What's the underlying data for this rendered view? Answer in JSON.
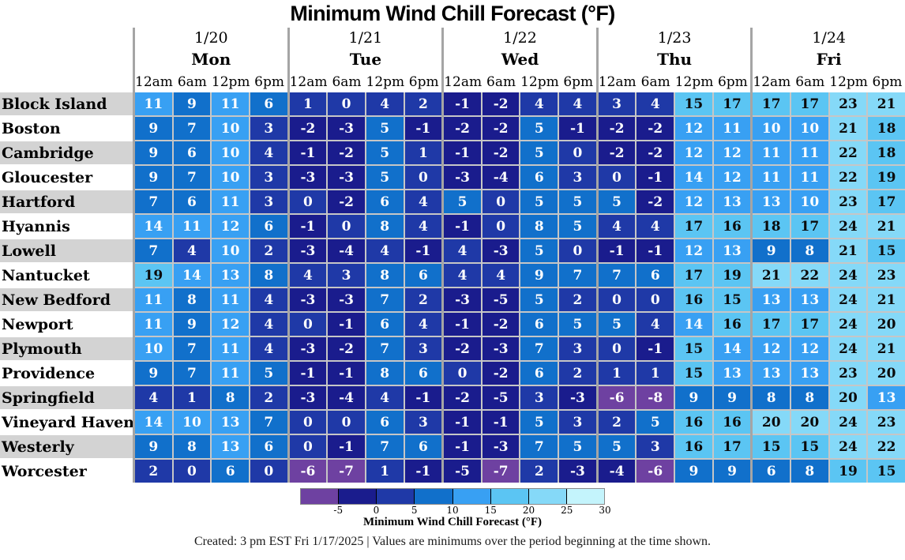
{
  "title": "Minimum Wind Chill Forecast (°F)",
  "footer": "Created: 3 pm EST Fri 1/17/2025  |  Values are minimums over the period beginning at the time shown.",
  "chart_data": {
    "type": "heatmap",
    "title": "Minimum Wind Chill Forecast (°F)",
    "day_headers": [
      {
        "date": "1/20",
        "day": "Mon"
      },
      {
        "date": "1/21",
        "day": "Tue"
      },
      {
        "date": "1/22",
        "day": "Wed"
      },
      {
        "date": "1/23",
        "day": "Thu"
      },
      {
        "date": "1/24",
        "day": "Fri"
      }
    ],
    "times_per_day": [
      "12am",
      "6am",
      "12pm",
      "6pm"
    ],
    "rows": [
      {
        "city": "Block Island",
        "values": [
          11,
          9,
          11,
          6,
          1,
          0,
          4,
          2,
          -1,
          -2,
          4,
          4,
          3,
          4,
          15,
          17,
          17,
          17,
          23,
          21
        ]
      },
      {
        "city": "Boston",
        "values": [
          9,
          7,
          10,
          3,
          -2,
          -3,
          5,
          -1,
          -2,
          -2,
          5,
          -1,
          -2,
          -2,
          12,
          11,
          10,
          10,
          21,
          18
        ]
      },
      {
        "city": "Cambridge",
        "values": [
          9,
          6,
          10,
          4,
          -1,
          -2,
          5,
          1,
          -1,
          -2,
          5,
          0,
          -2,
          -2,
          12,
          12,
          11,
          11,
          22,
          18
        ]
      },
      {
        "city": "Gloucester",
        "values": [
          9,
          7,
          10,
          3,
          -3,
          -3,
          5,
          0,
          -3,
          -4,
          6,
          3,
          0,
          -1,
          14,
          12,
          11,
          11,
          22,
          19
        ]
      },
      {
        "city": "Hartford",
        "values": [
          7,
          6,
          11,
          3,
          0,
          -2,
          6,
          4,
          5,
          0,
          5,
          5,
          5,
          -2,
          12,
          13,
          13,
          10,
          23,
          17
        ]
      },
      {
        "city": "Hyannis",
        "values": [
          14,
          11,
          12,
          6,
          -1,
          0,
          8,
          4,
          -1,
          0,
          8,
          5,
          4,
          4,
          17,
          16,
          18,
          17,
          24,
          21
        ]
      },
      {
        "city": "Lowell",
        "values": [
          7,
          4,
          10,
          2,
          -3,
          -4,
          4,
          -1,
          4,
          -3,
          5,
          0,
          -1,
          -1,
          12,
          13,
          9,
          8,
          21,
          15
        ]
      },
      {
        "city": "Nantucket",
        "values": [
          19,
          14,
          13,
          8,
          4,
          3,
          8,
          6,
          4,
          4,
          9,
          7,
          7,
          6,
          17,
          19,
          21,
          22,
          24,
          23
        ]
      },
      {
        "city": "New Bedford",
        "values": [
          11,
          8,
          11,
          4,
          -3,
          -3,
          7,
          2,
          -3,
          -5,
          5,
          2,
          0,
          0,
          16,
          15,
          13,
          13,
          24,
          21
        ]
      },
      {
        "city": "Newport",
        "values": [
          11,
          9,
          12,
          4,
          0,
          -1,
          6,
          4,
          -1,
          -2,
          6,
          5,
          5,
          4,
          14,
          16,
          17,
          17,
          24,
          20
        ]
      },
      {
        "city": "Plymouth",
        "values": [
          10,
          7,
          11,
          4,
          -3,
          -2,
          7,
          3,
          -2,
          -3,
          7,
          3,
          0,
          -1,
          15,
          14,
          12,
          12,
          24,
          21
        ]
      },
      {
        "city": "Providence",
        "values": [
          9,
          7,
          11,
          5,
          -1,
          -1,
          8,
          6,
          0,
          -2,
          6,
          2,
          1,
          1,
          15,
          13,
          13,
          13,
          23,
          20
        ]
      },
      {
        "city": "Springfield",
        "values": [
          4,
          1,
          8,
          2,
          -3,
          -4,
          4,
          -1,
          -2,
          -5,
          3,
          -3,
          -6,
          -8,
          9,
          9,
          8,
          8,
          20,
          13
        ]
      },
      {
        "city": "Vineyard Haven",
        "values": [
          14,
          10,
          13,
          7,
          0,
          0,
          6,
          3,
          -1,
          -1,
          5,
          3,
          2,
          5,
          16,
          16,
          20,
          20,
          24,
          23
        ]
      },
      {
        "city": "Westerly",
        "values": [
          9,
          8,
          13,
          6,
          0,
          -1,
          7,
          6,
          -1,
          -3,
          7,
          5,
          5,
          3,
          16,
          17,
          15,
          15,
          24,
          22
        ]
      },
      {
        "city": "Worcester",
        "values": [
          2,
          0,
          6,
          0,
          -6,
          -7,
          1,
          -1,
          -5,
          -7,
          2,
          -3,
          -4,
          -6,
          9,
          9,
          6,
          8,
          19,
          15
        ]
      }
    ],
    "colorbar": {
      "label": "Minimum Wind Chill Forecast (°F)",
      "ticks": [
        -5,
        0,
        5,
        10,
        15,
        20,
        25,
        30
      ],
      "range": [
        -10,
        30
      ],
      "bins": [
        {
          "max": -6,
          "color": "#6E41A1"
        },
        {
          "max": -1,
          "color": "#1A1C8D"
        },
        {
          "max": 4,
          "color": "#1F39A7"
        },
        {
          "max": 9,
          "color": "#1170CB"
        },
        {
          "max": 14,
          "color": "#38A0F3"
        },
        {
          "max": 19,
          "color": "#5BC5F3"
        },
        {
          "max": 24,
          "color": "#85D9F8"
        },
        {
          "max": 30,
          "color": "#C4F4FC"
        }
      ],
      "dark_text_threshold": 15,
      "text_color_light_bg": "#0b0b0b",
      "text_color_dark_bg": "#ffffff"
    }
  }
}
